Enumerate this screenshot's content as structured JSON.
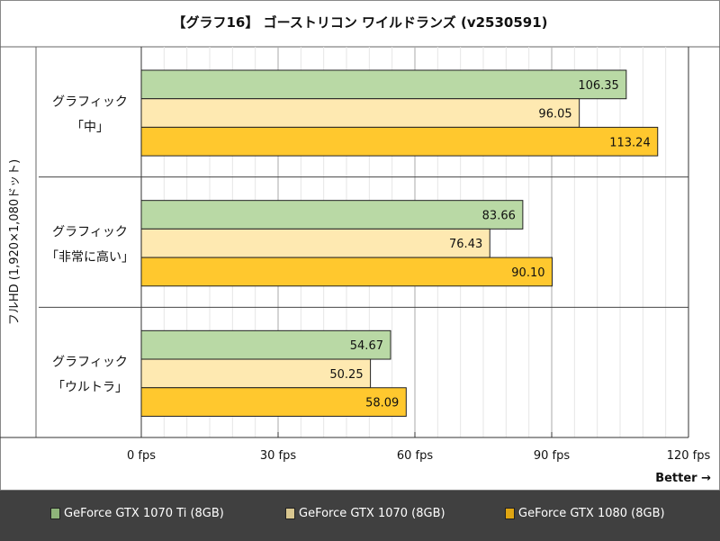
{
  "title": "【グラフ16】 ゴーストリコン ワイルドランズ (v2530591)",
  "chart_data": {
    "type": "bar",
    "orientation": "horizontal",
    "title": "【グラフ16】 ゴーストリコン ワイルドランズ (v2530591)",
    "ylabel": "フルHD (1,920×1,080ドット)",
    "xlabel": "Better →",
    "categories": [
      [
        "グラフィック",
        "「中」"
      ],
      [
        "グラフィック",
        "「非常に高い」"
      ],
      [
        "グラフィック",
        "「ウルトラ」"
      ]
    ],
    "series": [
      {
        "name": "GeForce GTX 1070 Ti (8GB)",
        "color": "#b9d9a5",
        "legend_color": "#8fb47a",
        "values": [
          106.35,
          83.66,
          54.67
        ],
        "labels": [
          "106.35",
          "83.66",
          "54.67"
        ]
      },
      {
        "name": "GeForce GTX 1070 (8GB)",
        "color": "#fee9b1",
        "legend_color": "#d8c68f",
        "values": [
          96.05,
          76.43,
          50.25
        ],
        "labels": [
          "96.05",
          "76.43",
          "50.25"
        ]
      },
      {
        "name": "GeForce GTX 1080 (8GB)",
        "color": "#ffc82e",
        "legend_color": "#dfa512",
        "values": [
          113.24,
          90.1,
          58.09
        ],
        "labels": [
          "113.24",
          "90.10",
          "58.09"
        ]
      }
    ],
    "xlim": [
      0,
      120
    ],
    "xticks": [
      0,
      30,
      60,
      90,
      120
    ],
    "xtick_labels": [
      "0 fps",
      "30 fps",
      "60 fps",
      "90 fps",
      "120 fps"
    ],
    "minor_grid_step": 5,
    "grid": true,
    "legend_position": "bottom"
  }
}
